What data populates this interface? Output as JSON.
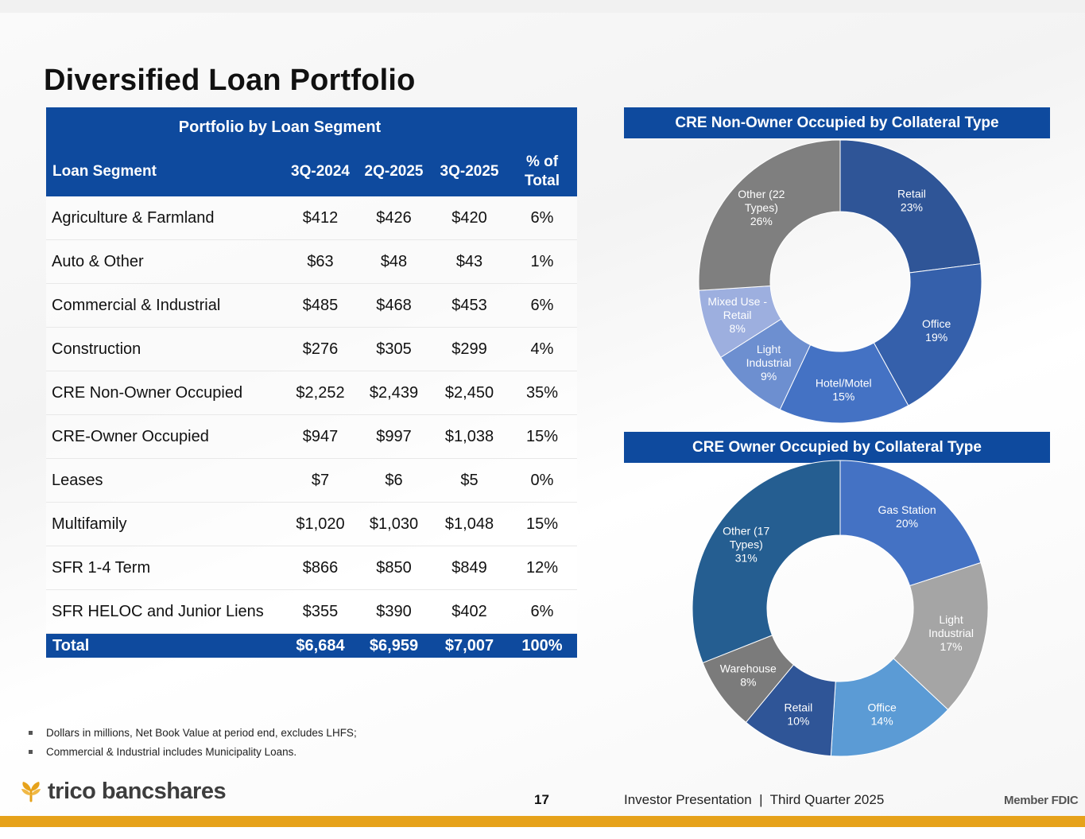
{
  "title": "Diversified Loan Portfolio",
  "table": {
    "title": "Portfolio by Loan Segment",
    "headers": {
      "segment": "Loan Segment",
      "c1": "3Q-2024",
      "c2": "2Q-2025",
      "c3": "3Q-2025",
      "pct_line1": "% of",
      "pct_line2": "Total"
    },
    "rows": [
      {
        "segment": "Agriculture & Farmland",
        "v1": "$412",
        "v2": "$426",
        "v3": "$420",
        "pct": "6%"
      },
      {
        "segment": "Auto & Other",
        "v1": "$63",
        "v2": "$48",
        "v3": "$43",
        "pct": "1%"
      },
      {
        "segment": "Commercial & Industrial",
        "v1": "$485",
        "v2": "$468",
        "v3": "$453",
        "pct": "6%"
      },
      {
        "segment": "Construction",
        "v1": "$276",
        "v2": "$305",
        "v3": "$299",
        "pct": "4%"
      },
      {
        "segment": "CRE Non-Owner Occupied",
        "v1": "$2,252",
        "v2": "$2,439",
        "v3": "$2,450",
        "pct": "35%"
      },
      {
        "segment": "CRE-Owner Occupied",
        "v1": "$947",
        "v2": "$997",
        "v3": "$1,038",
        "pct": "15%"
      },
      {
        "segment": "Leases",
        "v1": "$7",
        "v2": "$6",
        "v3": "$5",
        "pct": "0%"
      },
      {
        "segment": "Multifamily",
        "v1": "$1,020",
        "v2": "$1,030",
        "v3": "$1,048",
        "pct": "15%"
      },
      {
        "segment": "SFR 1-4 Term",
        "v1": "$866",
        "v2": "$850",
        "v3": "$849",
        "pct": "12%"
      },
      {
        "segment": "SFR HELOC and Junior Liens",
        "v1": "$355",
        "v2": "$390",
        "v3": "$402",
        "pct": "6%"
      }
    ],
    "total": {
      "segment": "Total",
      "v1": "$6,684",
      "v2": "$6,959",
      "v3": "$7,007",
      "pct": "100%"
    }
  },
  "chart_data": [
    {
      "type": "pie",
      "title": "CRE Non-Owner Occupied by Collateral Type",
      "categories": [
        "Retail",
        "Office",
        "Hotel/Motel",
        "Light Industrial",
        "Mixed Use - Retail",
        "Other (22 Types)"
      ],
      "values": [
        23,
        19,
        15,
        9,
        8,
        26
      ],
      "labels": [
        [
          "Retail",
          "23%"
        ],
        [
          "Office",
          "19%"
        ],
        [
          "Hotel/Motel",
          "15%"
        ],
        [
          "Light",
          "Industrial",
          "9%"
        ],
        [
          "Mixed Use -",
          "Retail",
          "8%"
        ],
        [
          "Other (22",
          "Types)",
          "26%"
        ]
      ],
      "colors": [
        "#2f5597",
        "#3560ab",
        "#4472c4",
        "#6d8fd0",
        "#9dafdf",
        "#7f7f7f"
      ],
      "label_colors": [
        "#ffffff",
        "#ffffff",
        "#ffffff",
        "#ffffff",
        "#ffffff",
        "#ffffff"
      ]
    },
    {
      "type": "pie",
      "title": "CRE Owner Occupied by Collateral Type",
      "categories": [
        "Gas Station",
        "Light Industrial",
        "Office",
        "Retail",
        "Warehouse",
        "Other (17 Types)"
      ],
      "values": [
        20,
        17,
        14,
        10,
        8,
        31
      ],
      "labels": [
        [
          "Gas Station",
          "20%"
        ],
        [
          "Light",
          "Industrial",
          "17%"
        ],
        [
          "Office",
          "14%"
        ],
        [
          "Retail",
          "10%"
        ],
        [
          "Warehouse",
          "8%"
        ],
        [
          "Other (17",
          "Types)",
          "31%"
        ]
      ],
      "colors": [
        "#4472c4",
        "#a5a5a5",
        "#5b9bd5",
        "#2f5597",
        "#7b7b7b",
        "#255e91"
      ],
      "label_colors": [
        "#ffffff",
        "#ffffff",
        "#ffffff",
        "#ffffff",
        "#ffffff",
        "#ffffff"
      ]
    }
  ],
  "notes": [
    "Dollars in millions, Net Book Value at period end, excludes LHFS;",
    "Commercial & Industrial includes Municipality Loans."
  ],
  "footer": {
    "logo_text": "trico bancshares",
    "page_number": "17",
    "presentation": "Investor Presentation  |  Third Quarter 2025",
    "fdic": "Member FDIC"
  },
  "colors": {
    "brand_blue": "#0e4a9e",
    "accent_gold": "#e6a21b"
  }
}
